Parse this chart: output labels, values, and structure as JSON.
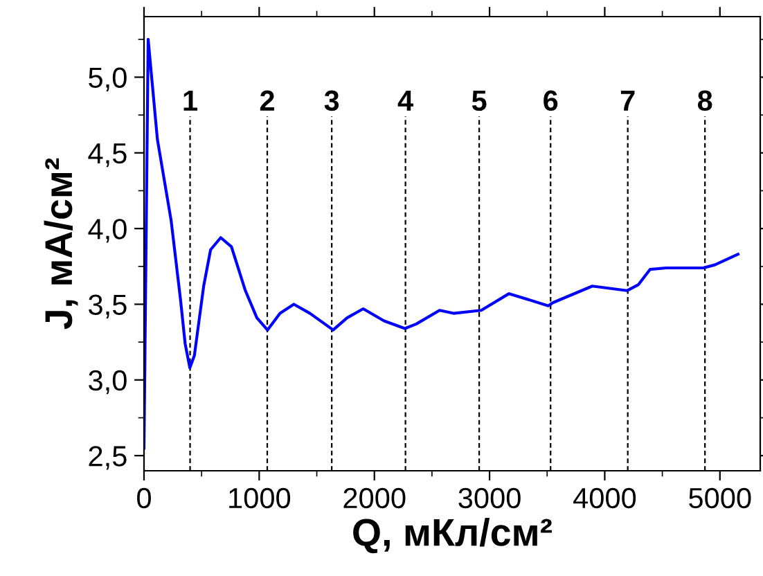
{
  "chart_data": {
    "type": "line",
    "xlabel": "Q, мКл/см²",
    "ylabel": "J, мА/см²",
    "xlim": [
      0,
      5350
    ],
    "ylim": [
      2.4,
      5.4
    ],
    "xticks": [
      0,
      1000,
      2000,
      3000,
      4000,
      5000
    ],
    "yticks": [
      {
        "value": 2.5,
        "label": "2,5"
      },
      {
        "value": 3.0,
        "label": "3,0"
      },
      {
        "value": 3.5,
        "label": "3,5"
      },
      {
        "value": 4.0,
        "label": "4,0"
      },
      {
        "value": 4.5,
        "label": "4,5"
      },
      {
        "value": 5.0,
        "label": "5,0"
      }
    ],
    "grid": false,
    "marker": "none",
    "line_style": "solid",
    "series": [
      {
        "color": "#0000ff",
        "x": [
          0,
          36,
          116,
          236,
          317,
          357,
          398,
          437,
          518,
          578,
          666,
          759,
          880,
          980,
          1072,
          1181,
          1301,
          1441,
          1642,
          1763,
          1903,
          2084,
          2265,
          2365,
          2566,
          2687,
          2928,
          3169,
          3510,
          3549,
          3892,
          4193,
          4293,
          4393,
          4534,
          4855,
          4955,
          5157
        ],
        "values": [
          2.55,
          5.25,
          4.59,
          4.05,
          3.53,
          3.24,
          3.08,
          3.16,
          3.62,
          3.86,
          3.94,
          3.88,
          3.59,
          3.41,
          3.33,
          3.44,
          3.5,
          3.44,
          3.33,
          3.41,
          3.47,
          3.39,
          3.34,
          3.37,
          3.46,
          3.44,
          3.46,
          3.57,
          3.49,
          3.51,
          3.62,
          3.59,
          3.63,
          3.73,
          3.74,
          3.74,
          3.76,
          3.83
        ]
      }
    ],
    "ref_lines": [
      {
        "axis": "x",
        "value": 400,
        "line_style": "dashed",
        "color": "#000000"
      },
      {
        "axis": "x",
        "value": 1070,
        "line_style": "dashed",
        "color": "#000000"
      },
      {
        "axis": "x",
        "value": 1630,
        "line_style": "dashed",
        "color": "#000000"
      },
      {
        "axis": "x",
        "value": 2270,
        "line_style": "dashed",
        "color": "#000000"
      },
      {
        "axis": "x",
        "value": 2910,
        "line_style": "dashed",
        "color": "#000000"
      },
      {
        "axis": "x",
        "value": 3530,
        "line_style": "dashed",
        "color": "#000000"
      },
      {
        "axis": "x",
        "value": 4200,
        "line_style": "dashed",
        "color": "#000000"
      },
      {
        "axis": "x",
        "value": 4870,
        "line_style": "dashed",
        "color": "#000000"
      }
    ],
    "annotations": [
      {
        "text": "1",
        "x": 400,
        "y": 4.74
      },
      {
        "text": "2",
        "x": 1070,
        "y": 4.74
      },
      {
        "text": "3",
        "x": 1630,
        "y": 4.74
      },
      {
        "text": "4",
        "x": 2270,
        "y": 4.74
      },
      {
        "text": "5",
        "x": 2910,
        "y": 4.74
      },
      {
        "text": "6",
        "x": 3530,
        "y": 4.74
      },
      {
        "text": "7",
        "x": 4200,
        "y": 4.74
      },
      {
        "text": "8",
        "x": 4870,
        "y": 4.74
      }
    ]
  }
}
